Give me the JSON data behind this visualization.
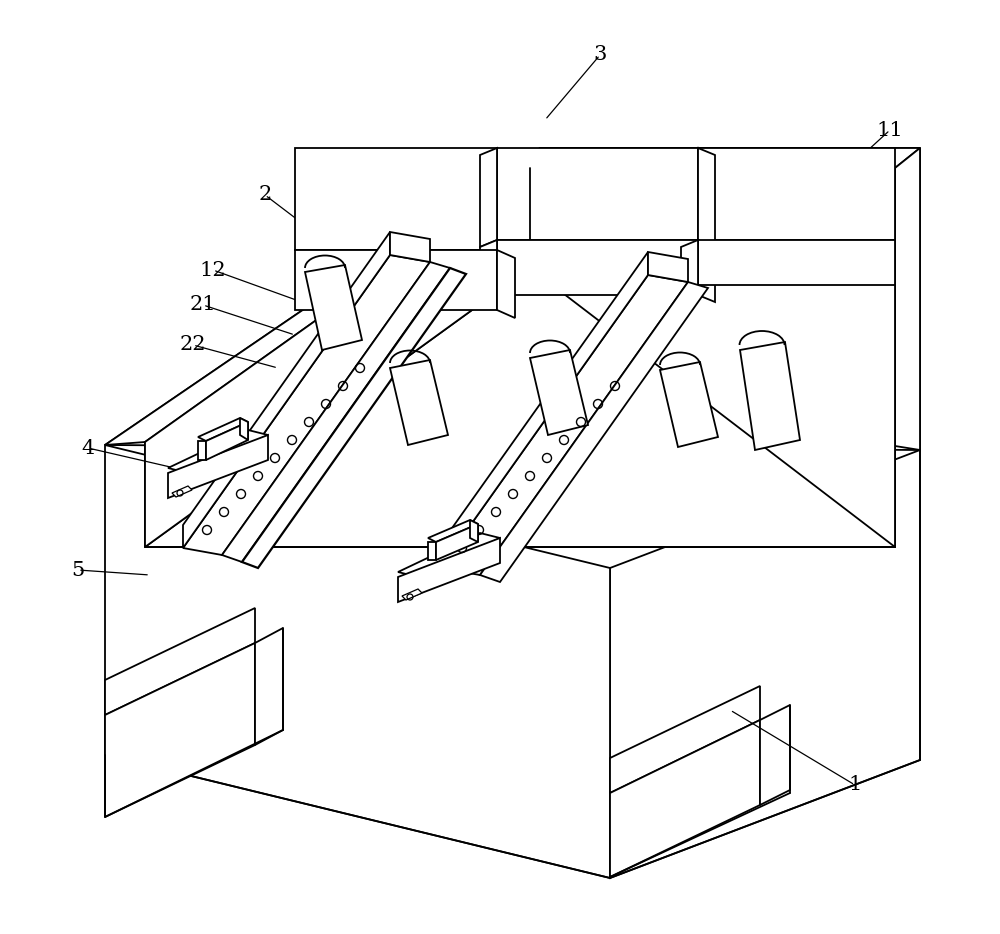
{
  "background_color": "#ffffff",
  "line_color": "#000000",
  "lw": 1.3,
  "fig_width": 10.0,
  "fig_height": 9.34,
  "annotations": [
    [
      "1",
      855,
      785,
      730,
      710
    ],
    [
      "2",
      265,
      195,
      390,
      290
    ],
    [
      "3",
      600,
      55,
      545,
      120
    ],
    [
      "4",
      88,
      448,
      192,
      472
    ],
    [
      "5",
      78,
      570,
      150,
      575
    ],
    [
      "11",
      890,
      130,
      830,
      185
    ],
    [
      "12",
      213,
      270,
      310,
      305
    ],
    [
      "21",
      203,
      305,
      295,
      335
    ],
    [
      "22",
      193,
      345,
      278,
      368
    ]
  ]
}
